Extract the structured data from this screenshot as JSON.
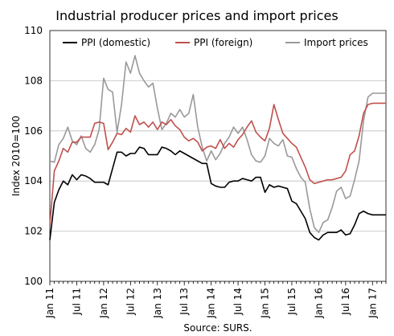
{
  "chart_data": {
    "type": "line",
    "title": "Industrial producer prices and import prices",
    "ylabel": "Index 2010=100",
    "xlabel": "",
    "source": "Source: SURS.",
    "ylim": [
      100,
      110
    ],
    "yticks": [
      "100",
      "102",
      "104",
      "106",
      "108",
      "110"
    ],
    "x_tick_labels": [
      "Jan 11",
      "Jul 11",
      "Jan 12",
      "Jul 12",
      "Jan 13",
      "Jul 13",
      "Jan 14",
      "Jul 14",
      "Jan 15",
      "Jul 15",
      "Jan 16",
      "Jul 16",
      "Jan 17"
    ],
    "x_start": "Jan 11",
    "n_points": 76,
    "grid": "horizontal",
    "legend_position": "top",
    "series": [
      {
        "name": "PPI (domestic)",
        "color": "#000000",
        "values": [
          101.65,
          103.15,
          103.65,
          104.0,
          103.85,
          104.25,
          104.05,
          104.25,
          104.2,
          104.1,
          103.95,
          103.95,
          103.95,
          103.85,
          104.5,
          105.15,
          105.15,
          105.0,
          105.1,
          105.1,
          105.35,
          105.3,
          105.05,
          105.05,
          105.05,
          105.35,
          105.3,
          105.2,
          105.05,
          105.2,
          105.1,
          105.0,
          104.9,
          104.8,
          104.7,
          104.7,
          103.9,
          103.8,
          103.75,
          103.75,
          103.95,
          104.0,
          104.0,
          104.1,
          104.05,
          104.0,
          104.15,
          104.15,
          103.55,
          103.85,
          103.75,
          103.8,
          103.75,
          103.7,
          103.2,
          103.1,
          102.8,
          102.5,
          101.95,
          101.75,
          101.65,
          101.85,
          101.95,
          101.95,
          101.95,
          102.05,
          101.85,
          101.9,
          102.25,
          102.7,
          102.8,
          102.7,
          102.65,
          102.65,
          102.65,
          102.65
        ]
      },
      {
        "name": "PPI (foreign)",
        "color": "#c0504d",
        "values": [
          102.25,
          104.4,
          104.8,
          105.3,
          105.15,
          105.55,
          105.55,
          105.75,
          105.75,
          105.75,
          106.3,
          106.35,
          106.3,
          105.25,
          105.55,
          105.9,
          105.85,
          106.1,
          105.95,
          106.6,
          106.25,
          106.35,
          106.15,
          106.35,
          106.05,
          106.35,
          106.25,
          106.45,
          106.2,
          106.05,
          105.75,
          105.6,
          105.7,
          105.55,
          105.2,
          105.35,
          105.4,
          105.3,
          105.65,
          105.3,
          105.5,
          105.35,
          105.65,
          105.85,
          106.15,
          106.4,
          105.95,
          105.75,
          105.6,
          106.1,
          107.05,
          106.45,
          105.9,
          105.7,
          105.5,
          105.35,
          104.95,
          104.55,
          104.05,
          103.9,
          103.95,
          104.0,
          104.05,
          104.05,
          104.1,
          104.15,
          104.4,
          105.05,
          105.2,
          105.8,
          106.7,
          107.05,
          107.1,
          107.1,
          107.1,
          107.1
        ]
      },
      {
        "name": "Import prices",
        "color": "#999999",
        "values": [
          104.8,
          104.75,
          105.45,
          105.7,
          106.15,
          105.6,
          105.45,
          105.8,
          105.3,
          105.15,
          105.45,
          106.05,
          108.1,
          107.65,
          107.55,
          105.95,
          107.05,
          108.75,
          108.3,
          109.0,
          108.3,
          108.0,
          107.75,
          107.9,
          106.9,
          106.05,
          106.3,
          106.7,
          106.55,
          106.85,
          106.55,
          106.7,
          107.45,
          106.15,
          105.35,
          104.8,
          105.2,
          104.85,
          105.1,
          105.5,
          105.75,
          106.15,
          105.9,
          106.15,
          105.65,
          105.05,
          104.8,
          104.75,
          105.0,
          105.7,
          105.5,
          105.4,
          105.65,
          105.0,
          104.95,
          104.5,
          104.15,
          103.95,
          102.9,
          102.15,
          101.95,
          102.35,
          102.45,
          102.95,
          103.6,
          103.75,
          103.3,
          103.4,
          104.05,
          104.8,
          106.4,
          107.35,
          107.5,
          107.5,
          107.5,
          107.5
        ]
      }
    ]
  }
}
